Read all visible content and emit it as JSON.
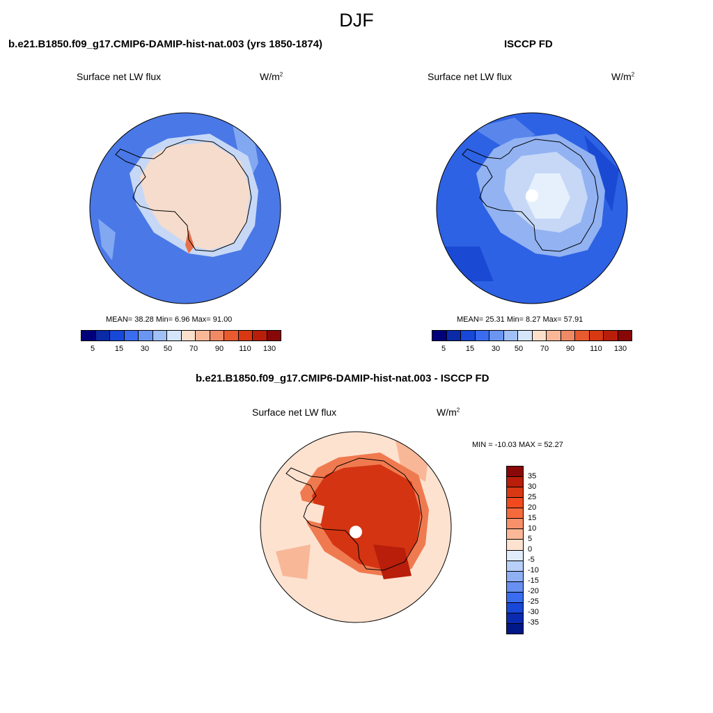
{
  "main_title": "DJF",
  "panels": [
    {
      "title": "b.e21.B1850.f09_g17.CMIP6-DAMIP-hist-nat.003 (yrs 1850-1874)",
      "variable": "Surface net LW flux",
      "units": "W/m",
      "units_sup": "2",
      "stats": "MEAN=  38.28  Min=   6.96  Max=  91.00",
      "colors": {
        "ocean": "#4a78e6",
        "ocean_light": "#82a8f2",
        "ice": "#f6dccc",
        "coast_light": "#c6d8f6"
      }
    },
    {
      "title": "ISCCP FD",
      "variable": "Surface net LW flux",
      "units": "W/m",
      "units_sup": "2",
      "stats": "MEAN=  25.31  Min=   8.27  Max=  57.91",
      "colors": {
        "ocean": "#2e62e4",
        "ocean_light": "#5a86ec",
        "ice": "#c6d8f6",
        "coast_light": "#92b2f2"
      }
    },
    {
      "title": "b.e21.B1850.f09_g17.CMIP6-DAMIP-hist-nat.003 - ISCCP FD",
      "variable": "Surface net LW flux",
      "units": "W/m",
      "units_sup": "2",
      "stats": "MIN = -10.03 MAX =  52.27",
      "colors": {
        "ocean": "#fde2d0",
        "ocean_light": "#f8b898",
        "ice": "#d43412",
        "coast_light": "#f07a50"
      }
    }
  ],
  "colorbar_abs": {
    "colors": [
      "#00007a",
      "#0a2aa8",
      "#1848d8",
      "#3a6cf0",
      "#6a96f2",
      "#a0c0f6",
      "#d6e6fa",
      "#fde0cc",
      "#f8b898",
      "#f08a66",
      "#e85a30",
      "#d83812",
      "#b81e0a",
      "#880808"
    ],
    "labels": [
      "5",
      "15",
      "30",
      "50",
      "70",
      "90",
      "110",
      "130"
    ]
  },
  "colorbar_diff": {
    "colors": [
      "#8a0808",
      "#b81e0a",
      "#d83812",
      "#f04a1e",
      "#f46a3c",
      "#f8906a",
      "#fab898",
      "#fde2d0",
      "#e0ecfc",
      "#b8d0f8",
      "#90b0f4",
      "#6890f0",
      "#3a6cf0",
      "#1848d8",
      "#0a2ab0",
      "#001888",
      "#00007a"
    ],
    "labels": [
      "35",
      "30",
      "25",
      "20",
      "15",
      "10",
      "5",
      "0",
      "-5",
      "-10",
      "-15",
      "-20",
      "-25",
      "-30",
      "-35"
    ]
  }
}
